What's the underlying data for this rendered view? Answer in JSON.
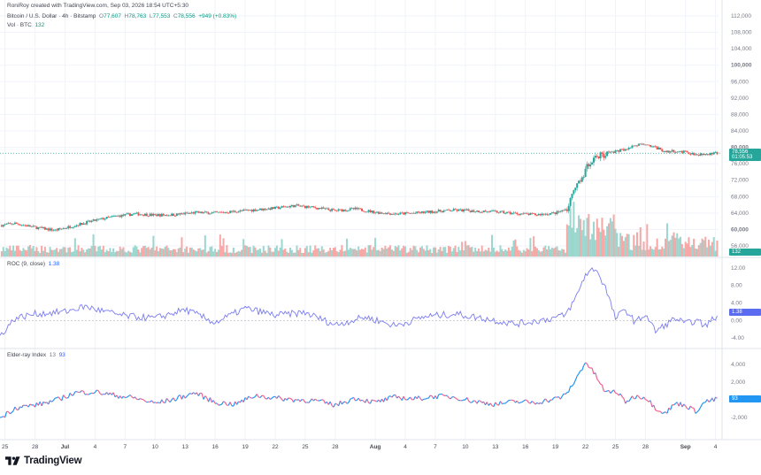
{
  "header": {
    "attribution": "RoniRoy created with TradingView.com, Sep 03, 2026 18:54 UTC+5:30",
    "symbol": "Bitcoin / U.S. Dollar · 4h · Bitstamp",
    "ohlc": {
      "open_label": "O",
      "open": "77,607",
      "high_label": "H",
      "high": "78,763",
      "low_label": "L",
      "low": "77,553",
      "close_label": "C",
      "close": "78,556",
      "change": "+949 (+0.83%)"
    },
    "volume_label": "Vol · BTC",
    "volume_value": "132",
    "roc_label": "ROC (9, close)",
    "roc_value": "1.38",
    "elder_label": "Elder-ray Index",
    "elder_param": "13",
    "elder_value": "93"
  },
  "badges": {
    "price": "78,556",
    "countdown": "01:05:53",
    "volume": "132",
    "roc": "1.38",
    "elder": "93"
  },
  "colors": {
    "up": "#26a69a",
    "down": "#ef5350",
    "vol_up": "#9bd6cf",
    "vol_down": "#f5a8a6",
    "roc_line": "#7b7df0",
    "elder_up": "#2196f3",
    "elder_down": "#f06292",
    "grid": "#f0f3fa",
    "axis_text": "#787b86"
  },
  "chart_data": [
    {
      "type": "candlestick",
      "title": "Bitcoin / U.S. Dollar · 4h · Bitstamp",
      "xlabel": "",
      "ylabel": "",
      "ylim": [
        56000,
        112000
      ],
      "y_ticks": [
        "112,000",
        "108,000",
        "104,000",
        "100,000",
        "96,000",
        "92,000",
        "88,000",
        "84,000",
        "80,000",
        "76,000",
        "72,000",
        "68,000",
        "64,000",
        "60,000",
        "56,000"
      ],
      "x_ticks": [
        "25",
        "28",
        "Jul",
        "4",
        "7",
        "10",
        "13",
        "16",
        "19",
        "22",
        "25",
        "28",
        "Aug",
        "4",
        "7",
        "10",
        "13",
        "16",
        "19",
        "22",
        "25",
        "28",
        "Sep",
        "4"
      ],
      "x_tick_days": [
        -6,
        -3,
        0,
        3,
        6,
        9,
        12,
        15,
        18,
        21,
        24,
        27,
        31,
        34,
        37,
        40,
        43,
        46,
        49,
        52,
        55,
        58,
        62,
        65
      ],
      "x_range_days": [
        -6.5,
        65.3
      ],
      "close_path": [
        {
          "day": -6.5,
          "close": 61000
        },
        {
          "day": -5,
          "close": 61500
        },
        {
          "day": -3,
          "close": 60500
        },
        {
          "day": -1,
          "close": 59800
        },
        {
          "day": 1,
          "close": 61000
        },
        {
          "day": 3,
          "close": 62200
        },
        {
          "day": 5,
          "close": 63200
        },
        {
          "day": 7,
          "close": 63800
        },
        {
          "day": 9,
          "close": 63500
        },
        {
          "day": 11,
          "close": 63600
        },
        {
          "day": 13,
          "close": 64100
        },
        {
          "day": 15,
          "close": 64000
        },
        {
          "day": 17,
          "close": 64400
        },
        {
          "day": 19,
          "close": 64800
        },
        {
          "day": 21,
          "close": 65200
        },
        {
          "day": 23,
          "close": 65800
        },
        {
          "day": 25,
          "close": 65300
        },
        {
          "day": 27,
          "close": 64600
        },
        {
          "day": 29,
          "close": 65000
        },
        {
          "day": 31,
          "close": 64200
        },
        {
          "day": 33,
          "close": 63800
        },
        {
          "day": 35,
          "close": 64000
        },
        {
          "day": 37,
          "close": 64400
        },
        {
          "day": 39,
          "close": 64700
        },
        {
          "day": 41,
          "close": 64500
        },
        {
          "day": 43,
          "close": 64300
        },
        {
          "day": 45,
          "close": 63900
        },
        {
          "day": 47,
          "close": 63600
        },
        {
          "day": 49,
          "close": 64000
        },
        {
          "day": 50,
          "close": 64800
        },
        {
          "day": 51,
          "close": 69500
        },
        {
          "day": 52,
          "close": 74500
        },
        {
          "day": 53,
          "close": 77800
        },
        {
          "day": 54,
          "close": 78600
        },
        {
          "day": 55,
          "close": 79000
        },
        {
          "day": 56,
          "close": 79600
        },
        {
          "day": 57,
          "close": 80400
        },
        {
          "day": 58,
          "close": 80900
        },
        {
          "day": 59,
          "close": 79900
        },
        {
          "day": 60,
          "close": 79000
        },
        {
          "day": 61,
          "close": 79100
        },
        {
          "day": 62,
          "close": 78800
        },
        {
          "day": 63,
          "close": 78300
        },
        {
          "day": 64,
          "close": 78400
        },
        {
          "day": 65.3,
          "close": 78556
        }
      ],
      "last": {
        "open": 77607,
        "high": 78763,
        "low": 77553,
        "close": 78556
      }
    },
    {
      "type": "bar",
      "title": "Vol · BTC",
      "note": "volume histogram under price pane",
      "last_value": 132
    },
    {
      "type": "line",
      "title": "ROC (9, close)",
      "ylim": [
        -6,
        14
      ],
      "y_ticks": [
        "12.00",
        "8.00",
        "4.00",
        "0.00",
        "-4.00"
      ],
      "path": [
        {
          "day": -6.5,
          "value": -3.5
        },
        {
          "day": -5,
          "value": 0.5
        },
        {
          "day": -3,
          "value": 1.5
        },
        {
          "day": 0,
          "value": 2.0
        },
        {
          "day": 2,
          "value": 3.2
        },
        {
          "day": 4,
          "value": 2.0
        },
        {
          "day": 6,
          "value": 1.0
        },
        {
          "day": 9,
          "value": 0.5
        },
        {
          "day": 12,
          "value": 2.5
        },
        {
          "day": 15,
          "value": -0.5
        },
        {
          "day": 18,
          "value": 2.8
        },
        {
          "day": 21,
          "value": 1.2
        },
        {
          "day": 24,
          "value": 1.8
        },
        {
          "day": 27,
          "value": -1.0
        },
        {
          "day": 30,
          "value": 0.8
        },
        {
          "day": 33,
          "value": -1.2
        },
        {
          "day": 36,
          "value": 0.9
        },
        {
          "day": 39,
          "value": 1.5
        },
        {
          "day": 42,
          "value": 0.4
        },
        {
          "day": 45,
          "value": -0.8
        },
        {
          "day": 48,
          "value": 0.2
        },
        {
          "day": 50,
          "value": 1.2
        },
        {
          "day": 51,
          "value": 5.0
        },
        {
          "day": 52,
          "value": 10.5
        },
        {
          "day": 53,
          "value": 12.0
        },
        {
          "day": 54,
          "value": 7.5
        },
        {
          "day": 55,
          "value": 0.5
        },
        {
          "day": 56,
          "value": 2.5
        },
        {
          "day": 57,
          "value": -0.5
        },
        {
          "day": 58,
          "value": 1.5
        },
        {
          "day": 59,
          "value": -2.5
        },
        {
          "day": 60,
          "value": -1.0
        },
        {
          "day": 61,
          "value": 0.5
        },
        {
          "day": 62,
          "value": -0.8
        },
        {
          "day": 63,
          "value": 0.0
        },
        {
          "day": 64,
          "value": -1.2
        },
        {
          "day": 65.3,
          "value": 1.38
        }
      ]
    },
    {
      "type": "line",
      "title": "Elder-ray Index",
      "ylim": [
        -3800,
        5600
      ],
      "y_ticks": [
        "4,000",
        "2,000",
        "0",
        "-2,000"
      ],
      "path": [
        {
          "day": -6.5,
          "value": -2100
        },
        {
          "day": -5,
          "value": -900
        },
        {
          "day": -3,
          "value": -600
        },
        {
          "day": -1,
          "value": -100
        },
        {
          "day": 1,
          "value": 800
        },
        {
          "day": 3,
          "value": 900
        },
        {
          "day": 5,
          "value": 500
        },
        {
          "day": 7,
          "value": 200
        },
        {
          "day": 9,
          "value": -400
        },
        {
          "day": 11,
          "value": 100
        },
        {
          "day": 13,
          "value": 800
        },
        {
          "day": 15,
          "value": -300
        },
        {
          "day": 17,
          "value": -500
        },
        {
          "day": 19,
          "value": 500
        },
        {
          "day": 21,
          "value": 200
        },
        {
          "day": 23,
          "value": 0
        },
        {
          "day": 25,
          "value": -100
        },
        {
          "day": 27,
          "value": -600
        },
        {
          "day": 29,
          "value": 200
        },
        {
          "day": 31,
          "value": -300
        },
        {
          "day": 33,
          "value": 300
        },
        {
          "day": 35,
          "value": 100
        },
        {
          "day": 37,
          "value": 400
        },
        {
          "day": 39,
          "value": 300
        },
        {
          "day": 41,
          "value": -200
        },
        {
          "day": 43,
          "value": -500
        },
        {
          "day": 45,
          "value": -200
        },
        {
          "day": 47,
          "value": -300
        },
        {
          "day": 49,
          "value": 100
        },
        {
          "day": 50,
          "value": 500
        },
        {
          "day": 51,
          "value": 2200
        },
        {
          "day": 52,
          "value": 4300
        },
        {
          "day": 53,
          "value": 2800
        },
        {
          "day": 54,
          "value": 800
        },
        {
          "day": 55,
          "value": 1000
        },
        {
          "day": 56,
          "value": -200
        },
        {
          "day": 57,
          "value": 400
        },
        {
          "day": 58,
          "value": 300
        },
        {
          "day": 59,
          "value": -900
        },
        {
          "day": 60,
          "value": -1500
        },
        {
          "day": 61,
          "value": -400
        },
        {
          "day": 62,
          "value": -600
        },
        {
          "day": 63,
          "value": -1300
        },
        {
          "day": 64,
          "value": -200
        },
        {
          "day": 65.3,
          "value": 93
        }
      ]
    }
  ]
}
